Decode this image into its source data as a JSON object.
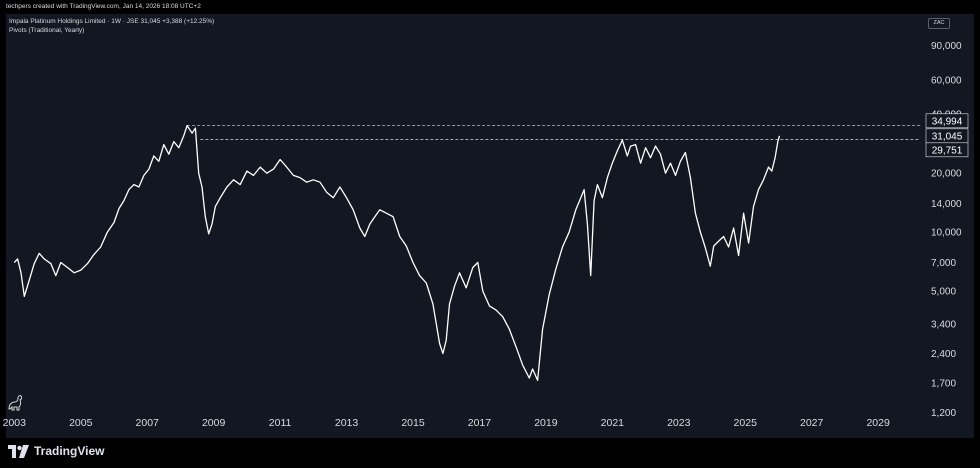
{
  "header": {
    "credit": "techpers created with TradingView.com, Jan 14, 2026 18:08 UTC+2",
    "symbol_line": "Impala Platinum Holdings Limited · 1W · JSE  31,045  +3,388 (+12.25%)",
    "indicator": "Pivots (Traditional, Yearly)",
    "currency": "ZAC"
  },
  "brand": {
    "name": "TradingView"
  },
  "colors": {
    "background": "#131722",
    "line": "#ffffff",
    "text": "#d9dadf",
    "frame": "#000000"
  },
  "chart_data": {
    "type": "line",
    "yscale": "log",
    "ylim": [
      1000,
      130000
    ],
    "xlim": [
      2002.75,
      2030.2
    ],
    "yticks": [
      1200,
      1700,
      2400,
      3400,
      5000,
      7000,
      10000,
      14000,
      20000,
      40000,
      60000,
      90000
    ],
    "ytick_labels": [
      "1,200",
      "1,700",
      "2,400",
      "3,400",
      "5,000",
      "7,000",
      "10,000",
      "14,000",
      "20,000",
      "40,000",
      "60,000",
      "90,000"
    ],
    "xticks": [
      2003,
      2005,
      2007,
      2009,
      2011,
      2013,
      2015,
      2017,
      2019,
      2021,
      2023,
      2025,
      2027,
      2029
    ],
    "xtick_labels": [
      "2003",
      "2005",
      "2007",
      "2009",
      "2011",
      "2013",
      "2015",
      "2017",
      "2019",
      "2021",
      "2023",
      "2025",
      "2027",
      "2029"
    ],
    "pivot_levels": [
      {
        "label": "34,994",
        "value": 34994,
        "start": 2008.2
      },
      {
        "label": "29,751",
        "value": 29751,
        "start": 2008.6
      }
    ],
    "last_price": {
      "label": "31,045",
      "value": 31045
    },
    "series": [
      {
        "x": [
          2003.0,
          2003.1,
          2003.2,
          2003.3,
          2003.45,
          2003.6,
          2003.75,
          2003.9,
          2004.1,
          2004.25,
          2004.4,
          2004.6,
          2004.8,
          2005.0,
          2005.2,
          2005.4,
          2005.6,
          2005.8,
          2006.0,
          2006.15,
          2006.3,
          2006.45,
          2006.6,
          2006.75,
          2006.9,
          2007.05,
          2007.2,
          2007.35,
          2007.5,
          2007.65,
          2007.8,
          2007.95,
          2008.1,
          2008.2,
          2008.35,
          2008.45,
          2008.55,
          2008.65,
          2008.75,
          2008.85,
          2008.95,
          2009.05,
          2009.2,
          2009.4,
          2009.6,
          2009.8,
          2010.0,
          2010.2,
          2010.4,
          2010.6,
          2010.8,
          2011.0,
          2011.2,
          2011.4,
          2011.6,
          2011.8,
          2012.0,
          2012.2,
          2012.4,
          2012.6,
          2012.8,
          2013.0,
          2013.2,
          2013.4,
          2013.55,
          2013.7,
          2013.85,
          2014.0,
          2014.2,
          2014.4,
          2014.6,
          2014.8,
          2015.0,
          2015.2,
          2015.4,
          2015.6,
          2015.8,
          2015.9,
          2016.0,
          2016.1,
          2016.25,
          2016.4,
          2016.6,
          2016.8,
          2016.95,
          2017.1,
          2017.3,
          2017.5,
          2017.7,
          2017.9,
          2018.1,
          2018.3,
          2018.5,
          2018.6,
          2018.75,
          2018.9,
          2019.1,
          2019.3,
          2019.5,
          2019.7,
          2019.9,
          2020.05,
          2020.15,
          2020.25,
          2020.35,
          2020.45,
          2020.55,
          2020.7,
          2020.85,
          2021.0,
          2021.15,
          2021.3,
          2021.45,
          2021.55,
          2021.7,
          2021.85,
          2022.0,
          2022.15,
          2022.3,
          2022.45,
          2022.6,
          2022.75,
          2022.9,
          2023.05,
          2023.2,
          2023.35,
          2023.5,
          2023.65,
          2023.8,
          2023.95,
          2024.05,
          2024.2,
          2024.35,
          2024.5,
          2024.65,
          2024.8,
          2024.95,
          2025.1,
          2025.25,
          2025.4,
          2025.55,
          2025.7,
          2025.8,
          2025.9,
          2025.98,
          2026.03
        ],
        "y": [
          7000,
          7300,
          6200,
          4700,
          5700,
          6900,
          7800,
          7300,
          6900,
          6000,
          7000,
          6600,
          6200,
          6400,
          6900,
          7700,
          8400,
          10000,
          11200,
          13200,
          14500,
          16500,
          17500,
          17000,
          19500,
          21000,
          24500,
          23000,
          28000,
          25000,
          29000,
          27000,
          31000,
          35000,
          32000,
          34000,
          20000,
          17000,
          12000,
          9800,
          11000,
          13500,
          15000,
          17000,
          18500,
          17500,
          20500,
          19500,
          21500,
          20000,
          21000,
          23500,
          21500,
          19500,
          19000,
          18000,
          18500,
          18000,
          16000,
          15000,
          17000,
          15000,
          13000,
          10500,
          9500,
          11000,
          12000,
          13000,
          12500,
          12000,
          9500,
          8500,
          7000,
          6000,
          5500,
          4300,
          2700,
          2400,
          2800,
          4300,
          5300,
          6200,
          5200,
          6600,
          7000,
          5000,
          4200,
          4000,
          3700,
          3200,
          2600,
          2100,
          1800,
          2000,
          1750,
          3200,
          4800,
          6500,
          8400,
          10000,
          13000,
          15000,
          16500,
          11000,
          6000,
          14500,
          17500,
          15000,
          19000,
          22500,
          26000,
          29500,
          24500,
          27500,
          28000,
          22500,
          27000,
          24000,
          27500,
          25000,
          20000,
          22500,
          19500,
          23000,
          25500,
          19000,
          12500,
          10000,
          8300,
          6700,
          8500,
          9000,
          9500,
          8400,
          10500,
          7600,
          12500,
          8800,
          13500,
          16500,
          18500,
          21500,
          20500,
          24000,
          29000,
          31045
        ]
      }
    ]
  }
}
